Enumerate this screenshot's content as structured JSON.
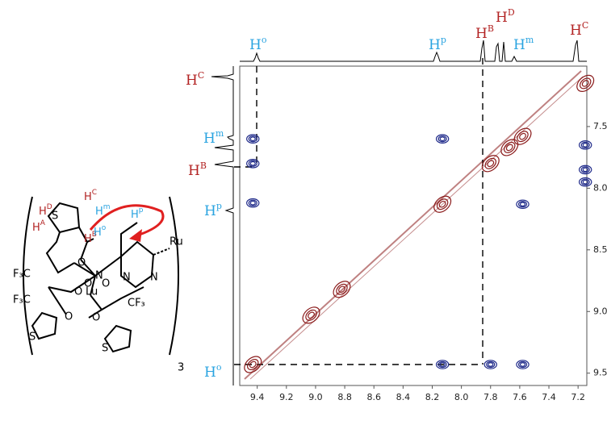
{
  "chart_data": {
    "type": "contour",
    "xlim": [
      9.52,
      7.14
    ],
    "ylim": [
      7.01,
      9.6
    ],
    "xticks": [
      9.4,
      9.2,
      {
        "value": 9,
        "label": "9.0"
      },
      8.8,
      8.6,
      8.4,
      8.2,
      {
        "value": 8,
        "label": "8.0"
      },
      7.8,
      7.6,
      7.4,
      7.2
    ],
    "yticks": [
      7.5,
      {
        "value": 8,
        "label": "8.0"
      },
      8.5,
      {
        "value": 9,
        "label": "9.0"
      },
      9.5
    ],
    "series": [
      {
        "color": "#8b1c1c",
        "x": [
          7.15,
          7.58,
          7.67,
          7.8,
          8.13,
          8.82,
          9.03,
          9.43
        ],
        "values": [
          7.15,
          7.58,
          7.67,
          7.8,
          8.13,
          8.82,
          9.03,
          9.43
        ]
      },
      {
        "color": "#1f2a8a",
        "x": [
          9.43,
          9.43,
          9.43,
          8.13,
          8.13,
          7.58,
          7.58,
          7.15,
          7.15,
          7.15,
          7.8
        ],
        "values": [
          7.6,
          7.8,
          8.12,
          7.6,
          9.43,
          8.13,
          9.43,
          7.65,
          7.85,
          7.95,
          9.43
        ]
      }
    ],
    "top_labels": [
      {
        "text": "H",
        "sup": "o",
        "color": "#29a3e0"
      },
      {
        "text": "H",
        "sup": "p",
        "color": "#29a3e0"
      },
      {
        "text": "H",
        "sup": "B",
        "color": "#b22222"
      },
      {
        "text": "H",
        "sup": "D",
        "color": "#b22222"
      },
      {
        "text": "H",
        "sup": "m",
        "color": "#29a3e0"
      },
      {
        "text": "H",
        "sup": "C",
        "color": "#b22222"
      }
    ],
    "left_labels": [
      {
        "text": "H",
        "sup": "C",
        "color": "#b22222"
      },
      {
        "text": "H",
        "sup": "m",
        "color": "#29a3e0"
      },
      {
        "text": "H",
        "sup": "B",
        "color": "#b22222"
      },
      {
        "text": "H",
        "sup": "p",
        "color": "#29a3e0"
      },
      {
        "text": "H",
        "sup": "o",
        "color": "#29a3e0"
      }
    ]
  },
  "structure": {
    "labels": [
      {
        "text": "H",
        "sup": "D",
        "color": "#b22222"
      },
      {
        "text": "H",
        "sup": "C",
        "color": "#b22222"
      },
      {
        "text": "H",
        "sup": "A",
        "color": "#b22222"
      },
      {
        "text": "H",
        "sup": "B",
        "color": "#b22222"
      },
      {
        "text": "H",
        "sup": "m",
        "color": "#29a3e0"
      },
      {
        "text": "H",
        "sup": "p",
        "color": "#29a3e0"
      },
      {
        "text": "H",
        "sup": "o",
        "color": "#29a3e0"
      }
    ],
    "atoms": [
      "S",
      "F₃C",
      "O",
      "O",
      "Lu",
      "N",
      "N",
      "N",
      "Ru",
      "F₃C",
      "O",
      "O",
      "O",
      "O",
      "CF₃",
      "S",
      "S",
      "3"
    ]
  }
}
